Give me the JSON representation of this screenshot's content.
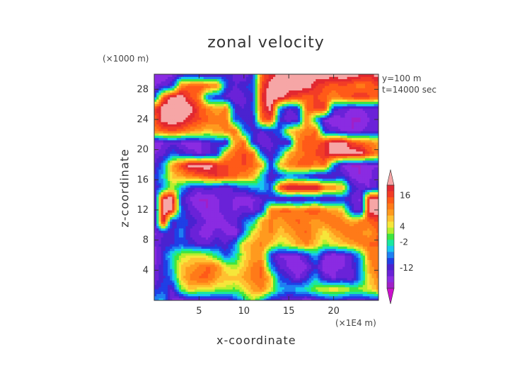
{
  "chart_data": {
    "type": "heatmap",
    "title": "zonal velocity",
    "xlabel": "x-coordinate",
    "ylabel": "z-coordinate",
    "x_unit": "(×1E4 m)",
    "y_unit": "(×1000 m)",
    "annotations": [
      "y=100 m",
      "t=14000 sec"
    ],
    "xlim": [
      0,
      25
    ],
    "ylim": [
      0,
      30
    ],
    "x_ticks": [
      "5",
      "10",
      "15",
      "20"
    ],
    "x_tick_values": [
      5,
      10,
      15,
      20
    ],
    "y_ticks": [
      "4",
      "8",
      "12",
      "16",
      "20",
      "24",
      "28"
    ],
    "y_tick_values": [
      4,
      8,
      12,
      16,
      20,
      24,
      28
    ],
    "colorbar": {
      "labels": [
        "16",
        "4",
        "-2",
        "-12"
      ],
      "label_values": [
        16,
        4,
        -2,
        -12
      ],
      "vmin": -20,
      "vmax": 20,
      "colors": [
        "#cc10cc",
        "#a020c8",
        "#8a2be2",
        "#6a22d8",
        "#4a22d0",
        "#1f3fe6",
        "#1e7ff2",
        "#17c7f0",
        "#18e8a0",
        "#3ee640",
        "#b6ee2e",
        "#f6e63a",
        "#ffc030",
        "#ff9a1e",
        "#ff7a18",
        "#ff5a18",
        "#f23c26",
        "#e22830",
        "#f6a6a6"
      ]
    },
    "bands": [
      {
        "z": 0.0,
        "v": [
          -6,
          -4,
          -14,
          -16,
          -14,
          -14,
          -14,
          -14,
          -14,
          -10,
          -4,
          2,
          -4,
          -12,
          -12,
          -14,
          -14,
          -16,
          -14,
          -12,
          -10,
          -12,
          -14,
          -14,
          -12,
          -12
        ]
      },
      {
        "z": 1.5,
        "v": [
          -10,
          -8,
          -12,
          0,
          6,
          4,
          4,
          2,
          2,
          0,
          4,
          8,
          10,
          4,
          -4,
          -6,
          -4,
          -2,
          2,
          4,
          6,
          4,
          2,
          2,
          4,
          8
        ]
      },
      {
        "z": 3.0,
        "v": [
          -14,
          -10,
          -6,
          6,
          10,
          12,
          12,
          8,
          6,
          6,
          8,
          10,
          12,
          6,
          -8,
          -10,
          -14,
          -10,
          -4,
          -12,
          -14,
          -12,
          -14,
          -6,
          6,
          10
        ]
      },
      {
        "z": 4.5,
        "v": [
          -14,
          -10,
          -4,
          6,
          8,
          10,
          12,
          10,
          4,
          2,
          6,
          10,
          12,
          -6,
          -12,
          -14,
          -16,
          -14,
          -10,
          -16,
          -14,
          -14,
          -12,
          -6,
          8,
          12
        ]
      },
      {
        "z": 6.0,
        "v": [
          -16,
          -10,
          -2,
          2,
          4,
          4,
          2,
          -2,
          -8,
          -4,
          4,
          8,
          8,
          -10,
          -14,
          -14,
          -14,
          -10,
          -4,
          -14,
          -16,
          -14,
          -12,
          -4,
          10,
          10
        ]
      },
      {
        "z": 7.5,
        "v": [
          -14,
          -10,
          -10,
          -8,
          -10,
          -12,
          -12,
          -10,
          -12,
          -6,
          6,
          8,
          10,
          6,
          2,
          4,
          8,
          10,
          6,
          2,
          4,
          6,
          8,
          10,
          12,
          12
        ]
      },
      {
        "z": 9.0,
        "v": [
          -14,
          -12,
          -10,
          -6,
          -12,
          -14,
          -16,
          -12,
          -14,
          -16,
          -6,
          4,
          8,
          10,
          6,
          8,
          10,
          12,
          8,
          4,
          8,
          10,
          12,
          10,
          8,
          12
        ]
      },
      {
        "z": 10.5,
        "v": [
          -14,
          20,
          -12,
          -8,
          -10,
          -12,
          -14,
          -16,
          -14,
          -12,
          -8,
          -4,
          8,
          10,
          8,
          10,
          12,
          10,
          8,
          10,
          12,
          10,
          8,
          10,
          12,
          14
        ]
      },
      {
        "z": 12.0,
        "v": [
          -14,
          20,
          18,
          -8,
          -12,
          -14,
          -16,
          -14,
          -12,
          -14,
          -12,
          -14,
          -10,
          10,
          12,
          12,
          10,
          12,
          14,
          10,
          8,
          6,
          -10,
          -14,
          20,
          20
        ]
      },
      {
        "z": 13.5,
        "v": [
          -14,
          20,
          20,
          -10,
          -14,
          -16,
          -16,
          -14,
          -12,
          -14,
          -16,
          -14,
          -12,
          -10,
          -14,
          -12,
          -14,
          -12,
          -10,
          -14,
          -12,
          -10,
          -12,
          -14,
          20,
          20
        ]
      },
      {
        "z": 15.0,
        "v": [
          -12,
          -6,
          2,
          -4,
          -10,
          -12,
          -10,
          -12,
          -14,
          -10,
          -8,
          -6,
          -4,
          -8,
          14,
          20,
          20,
          20,
          20,
          12,
          10,
          8,
          -10,
          -12,
          -14,
          -10
        ]
      },
      {
        "z": 16.5,
        "v": [
          -10,
          -4,
          6,
          8,
          10,
          12,
          14,
          16,
          14,
          12,
          10,
          8,
          -4,
          -12,
          -10,
          -6,
          -8,
          -10,
          -12,
          -14,
          -12,
          -10,
          -14,
          -16,
          -14,
          -12
        ]
      },
      {
        "z": 18.0,
        "v": [
          -12,
          -6,
          8,
          14,
          20,
          20,
          20,
          16,
          14,
          12,
          14,
          12,
          8,
          -10,
          6,
          10,
          12,
          14,
          10,
          12,
          -6,
          -14,
          -16,
          -16,
          -14,
          -14
        ]
      },
      {
        "z": 19.5,
        "v": [
          -14,
          -12,
          -8,
          -10,
          -12,
          -14,
          -12,
          -10,
          8,
          12,
          14,
          12,
          -8,
          -12,
          -6,
          8,
          10,
          12,
          14,
          16,
          20,
          20,
          20,
          20,
          14,
          10
        ]
      },
      {
        "z": 21.0,
        "v": [
          -16,
          -14,
          -12,
          -14,
          -16,
          -14,
          -12,
          -10,
          -12,
          8,
          12,
          -10,
          -14,
          -12,
          -10,
          -12,
          10,
          14,
          12,
          16,
          20,
          20,
          14,
          12,
          10,
          8
        ]
      },
      {
        "z": 22.5,
        "v": [
          10,
          12,
          14,
          12,
          10,
          8,
          6,
          8,
          10,
          12,
          -6,
          -10,
          -12,
          -10,
          -8,
          6,
          8,
          10,
          12,
          -10,
          -12,
          -14,
          -16,
          -14,
          -12,
          -14
        ]
      },
      {
        "z": 24.0,
        "v": [
          12,
          20,
          20,
          20,
          16,
          14,
          12,
          10,
          12,
          -8,
          -10,
          -12,
          12,
          14,
          -10,
          -14,
          -12,
          10,
          -4,
          -14,
          -16,
          -14,
          -16,
          -16,
          -14,
          -12
        ]
      },
      {
        "z": 25.5,
        "v": [
          14,
          20,
          20,
          20,
          20,
          14,
          10,
          8,
          10,
          -10,
          -12,
          -8,
          14,
          20,
          -6,
          -12,
          -10,
          12,
          14,
          16,
          -10,
          -12,
          -14,
          -14,
          -12,
          -14
        ]
      },
      {
        "z": 27.0,
        "v": [
          -10,
          12,
          20,
          20,
          14,
          10,
          -8,
          -10,
          -12,
          -14,
          -12,
          -10,
          16,
          20,
          20,
          16,
          14,
          12,
          14,
          12,
          10,
          12,
          14,
          16,
          14,
          12
        ]
      },
      {
        "z": 28.5,
        "v": [
          -14,
          -12,
          -10,
          10,
          12,
          14,
          12,
          10,
          -8,
          -12,
          -10,
          -8,
          14,
          20,
          20,
          20,
          20,
          20,
          16,
          14,
          12,
          14,
          12,
          10,
          12,
          14
        ]
      },
      {
        "z": 30.0,
        "v": [
          -16,
          -16,
          -14,
          -12,
          -10,
          -12,
          -14,
          -12,
          -10,
          -12,
          -14,
          -10,
          12,
          16,
          20,
          20,
          20,
          20,
          20,
          20,
          20,
          20,
          20,
          18,
          16,
          20
        ]
      }
    ]
  }
}
